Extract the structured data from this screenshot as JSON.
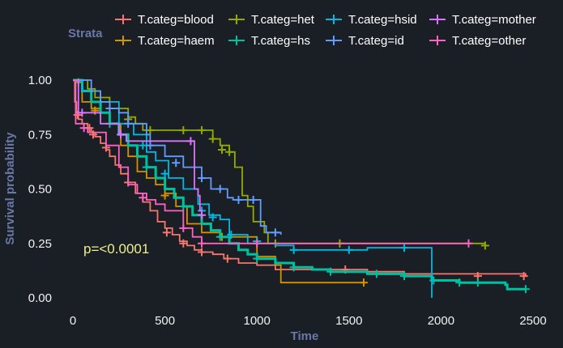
{
  "legend": {
    "title": "Strata"
  },
  "annotation": {
    "pvalue": "p=<0.0001"
  },
  "chart_data": {
    "type": "line",
    "subtype": "kaplan-meier-step",
    "xlabel": "Time",
    "ylabel": "Survival probability",
    "xlim": [
      0,
      2500
    ],
    "ylim": [
      0,
      1
    ],
    "x_ticks": [
      "0",
      "500",
      "1000",
      "1500",
      "2000",
      "2500"
    ],
    "y_ticks": [
      "0.00",
      "0.25",
      "0.50",
      "0.75",
      "1.00"
    ],
    "grid": false,
    "legend_position": "top",
    "series": [
      {
        "name": "T.categ=blood",
        "color": "#f8766d",
        "points": [
          [
            0,
            1.0
          ],
          [
            10,
            0.9
          ],
          [
            20,
            0.85
          ],
          [
            30,
            0.82
          ],
          [
            50,
            0.8
          ],
          [
            80,
            0.78
          ],
          [
            100,
            0.76
          ],
          [
            120,
            0.74
          ],
          [
            150,
            0.71
          ],
          [
            180,
            0.68
          ],
          [
            200,
            0.65
          ],
          [
            230,
            0.61
          ],
          [
            260,
            0.57
          ],
          [
            300,
            0.53
          ],
          [
            340,
            0.48
          ],
          [
            380,
            0.44
          ],
          [
            420,
            0.4
          ],
          [
            460,
            0.35
          ],
          [
            500,
            0.32
          ],
          [
            540,
            0.29
          ],
          [
            580,
            0.26
          ],
          [
            620,
            0.24
          ],
          [
            660,
            0.22
          ],
          [
            700,
            0.21
          ],
          [
            760,
            0.2
          ],
          [
            820,
            0.18
          ],
          [
            900,
            0.16
          ],
          [
            1000,
            0.15
          ],
          [
            1100,
            0.13
          ],
          [
            1500,
            0.13
          ],
          [
            1600,
            0.12
          ],
          [
            1800,
            0.11
          ],
          [
            2000,
            0.11
          ],
          [
            2460,
            0.1
          ]
        ],
        "censored": [
          [
            25,
            0.84
          ],
          [
            90,
            0.78
          ],
          [
            110,
            0.75
          ],
          [
            180,
            0.69
          ],
          [
            300,
            0.53
          ],
          [
            510,
            0.3
          ],
          [
            600,
            0.25
          ],
          [
            700,
            0.21
          ],
          [
            840,
            0.18
          ],
          [
            1480,
            0.13
          ],
          [
            2200,
            0.1
          ],
          [
            2450,
            0.1
          ]
        ]
      },
      {
        "name": "T.categ=haem",
        "color": "#d39200",
        "points": [
          [
            0,
            1.0
          ],
          [
            50,
            0.9
          ],
          [
            100,
            0.87
          ],
          [
            150,
            0.85
          ],
          [
            200,
            0.8
          ],
          [
            260,
            0.7
          ],
          [
            300,
            0.65
          ],
          [
            350,
            0.58
          ],
          [
            400,
            0.55
          ],
          [
            450,
            0.52
          ],
          [
            500,
            0.48
          ],
          [
            560,
            0.42
          ],
          [
            620,
            0.34
          ],
          [
            700,
            0.3
          ],
          [
            800,
            0.28
          ],
          [
            1000,
            0.19
          ],
          [
            1100,
            0.15
          ],
          [
            1130,
            0.07
          ],
          [
            1580,
            0.07
          ]
        ],
        "censored": [
          [
            120,
            0.86
          ],
          [
            500,
            0.47
          ],
          [
            810,
            0.28
          ],
          [
            1580,
            0.07
          ]
        ]
      },
      {
        "name": "T.categ=het",
        "color": "#93aa00",
        "points": [
          [
            0,
            1.0
          ],
          [
            60,
            1.0
          ],
          [
            80,
            0.96
          ],
          [
            120,
            0.92
          ],
          [
            200,
            0.87
          ],
          [
            300,
            0.83
          ],
          [
            340,
            0.8
          ],
          [
            380,
            0.77
          ],
          [
            700,
            0.77
          ],
          [
            760,
            0.73
          ],
          [
            800,
            0.7
          ],
          [
            850,
            0.67
          ],
          [
            880,
            0.6
          ],
          [
            920,
            0.47
          ],
          [
            950,
            0.42
          ],
          [
            980,
            0.35
          ],
          [
            1040,
            0.3
          ],
          [
            1060,
            0.25
          ],
          [
            2200,
            0.25
          ],
          [
            2240,
            0.24
          ]
        ],
        "censored": [
          [
            30,
            0.99
          ],
          [
            300,
            0.82
          ],
          [
            420,
            0.77
          ],
          [
            600,
            0.77
          ],
          [
            700,
            0.77
          ],
          [
            760,
            0.73
          ],
          [
            810,
            0.68
          ],
          [
            850,
            0.67
          ],
          [
            1100,
            0.25
          ],
          [
            1450,
            0.25
          ],
          [
            2240,
            0.24
          ]
        ]
      },
      {
        "name": "T.categ=hs",
        "color": "#00c19f",
        "points": [
          [
            0,
            1.0
          ],
          [
            50,
            0.95
          ],
          [
            100,
            0.9
          ],
          [
            150,
            0.85
          ],
          [
            200,
            0.8
          ],
          [
            250,
            0.75
          ],
          [
            300,
            0.7
          ],
          [
            350,
            0.65
          ],
          [
            400,
            0.6
          ],
          [
            450,
            0.55
          ],
          [
            500,
            0.5
          ],
          [
            550,
            0.46
          ],
          [
            600,
            0.42
          ],
          [
            650,
            0.38
          ],
          [
            700,
            0.34
          ],
          [
            750,
            0.31
          ],
          [
            800,
            0.28
          ],
          [
            850,
            0.25
          ],
          [
            900,
            0.22
          ],
          [
            950,
            0.2
          ],
          [
            1000,
            0.18
          ],
          [
            1100,
            0.16
          ],
          [
            1200,
            0.14
          ],
          [
            1300,
            0.13
          ],
          [
            1400,
            0.12
          ],
          [
            1600,
            0.11
          ],
          [
            1800,
            0.1
          ],
          [
            1950,
            0.08
          ],
          [
            2100,
            0.07
          ],
          [
            2350,
            0.06
          ],
          [
            2360,
            0.04
          ],
          [
            2460,
            0.04
          ]
        ],
        "censored": [
          [
            200,
            0.8
          ],
          [
            400,
            0.6
          ],
          [
            600,
            0.42
          ],
          [
            800,
            0.28
          ],
          [
            1000,
            0.18
          ],
          [
            1200,
            0.14
          ],
          [
            1400,
            0.12
          ],
          [
            1650,
            0.11
          ],
          [
            1800,
            0.1
          ],
          [
            1960,
            0.08
          ],
          [
            2100,
            0.07
          ],
          [
            2200,
            0.07
          ],
          [
            2460,
            0.04
          ]
        ]
      },
      {
        "name": "T.categ=hsid",
        "color": "#00b9e3",
        "points": [
          [
            0,
            1.0
          ],
          [
            50,
            0.95
          ],
          [
            150,
            0.9
          ],
          [
            250,
            0.8
          ],
          [
            330,
            0.75
          ],
          [
            400,
            0.67
          ],
          [
            450,
            0.63
          ],
          [
            520,
            0.55
          ],
          [
            600,
            0.5
          ],
          [
            680,
            0.43
          ],
          [
            740,
            0.38
          ],
          [
            800,
            0.36
          ],
          [
            850,
            0.29
          ],
          [
            950,
            0.25
          ],
          [
            1100,
            0.24
          ],
          [
            1200,
            0.22
          ],
          [
            1400,
            0.22
          ],
          [
            1600,
            0.23
          ],
          [
            1930,
            0.23
          ],
          [
            1950,
            0.0
          ]
        ],
        "censored": [
          [
            380,
            0.7
          ],
          [
            500,
            0.57
          ],
          [
            700,
            0.4
          ],
          [
            760,
            0.37
          ],
          [
            860,
            0.29
          ],
          [
            1000,
            0.26
          ],
          [
            1200,
            0.22
          ],
          [
            1500,
            0.22
          ],
          [
            1800,
            0.23
          ]
        ]
      },
      {
        "name": "T.categ=id",
        "color": "#619cff",
        "points": [
          [
            0,
            1.0
          ],
          [
            100,
            0.95
          ],
          [
            150,
            0.9
          ],
          [
            200,
            0.87
          ],
          [
            250,
            0.85
          ],
          [
            300,
            0.8
          ],
          [
            400,
            0.75
          ],
          [
            420,
            0.7
          ],
          [
            500,
            0.65
          ],
          [
            600,
            0.6
          ],
          [
            700,
            0.55
          ],
          [
            750,
            0.5
          ],
          [
            840,
            0.46
          ],
          [
            870,
            0.45
          ],
          [
            1000,
            0.45
          ],
          [
            1020,
            0.33
          ],
          [
            1050,
            0.3
          ],
          [
            1130,
            0.29
          ]
        ],
        "censored": [
          [
            200,
            0.87
          ],
          [
            300,
            0.8
          ],
          [
            420,
            0.7
          ],
          [
            560,
            0.62
          ],
          [
            700,
            0.55
          ],
          [
            800,
            0.5
          ],
          [
            900,
            0.45
          ],
          [
            980,
            0.45
          ],
          [
            1100,
            0.3
          ]
        ]
      },
      {
        "name": "T.categ=mother",
        "color": "#db72fb",
        "points": [
          [
            0,
            1.0
          ],
          [
            30,
            0.85
          ],
          [
            100,
            0.85
          ],
          [
            150,
            0.8
          ],
          [
            250,
            0.75
          ],
          [
            290,
            0.72
          ],
          [
            650,
            0.72
          ],
          [
            660,
            0.5
          ],
          [
            680,
            0.47
          ],
          [
            690,
            0.4
          ],
          [
            700,
            0.38
          ]
        ],
        "censored": [
          [
            50,
            0.85
          ],
          [
            260,
            0.75
          ],
          [
            640,
            0.72
          ],
          [
            700,
            0.38
          ]
        ]
      },
      {
        "name": "T.categ=other",
        "color": "#ff61c3",
        "points": [
          [
            0,
            1.0
          ],
          [
            15,
            0.8
          ],
          [
            60,
            0.78
          ],
          [
            80,
            0.76
          ],
          [
            180,
            0.7
          ],
          [
            250,
            0.6
          ],
          [
            300,
            0.52
          ],
          [
            350,
            0.48
          ],
          [
            400,
            0.45
          ],
          [
            450,
            0.43
          ],
          [
            500,
            0.4
          ],
          [
            600,
            0.32
          ],
          [
            650,
            0.28
          ],
          [
            700,
            0.25
          ],
          [
            2150,
            0.25
          ],
          [
            2160,
            0.25
          ]
        ],
        "censored": [
          [
            60,
            0.78
          ],
          [
            380,
            0.46
          ],
          [
            600,
            0.32
          ],
          [
            700,
            0.25
          ],
          [
            1000,
            0.25
          ],
          [
            2150,
            0.25
          ]
        ]
      }
    ]
  }
}
